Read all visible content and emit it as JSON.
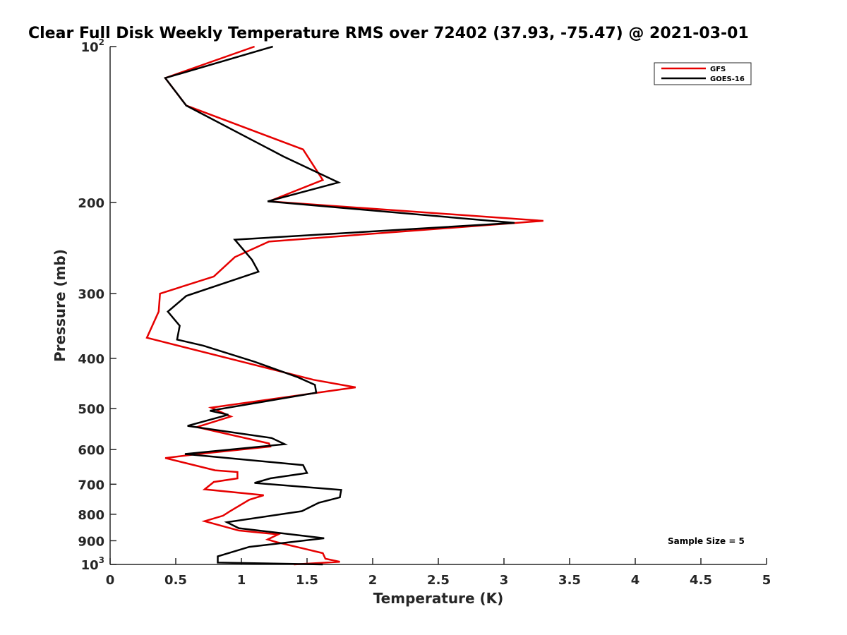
{
  "chart_data": {
    "type": "line",
    "title": "Clear Full Disk Weekly Temperature RMS over 72402 (37.93, -75.47) @ 2021-03-01",
    "xlabel": "Temperature (K)",
    "ylabel": "Pressure (mb)",
    "xlim": [
      0,
      5
    ],
    "ylim": [
      100,
      1000
    ],
    "y_scale": "log",
    "y_reversed": true,
    "grid": false,
    "legend_position": "top-right",
    "x_ticks": [
      0,
      0.5,
      1,
      1.5,
      2,
      2.5,
      3,
      3.5,
      4,
      4.5,
      5
    ],
    "x_tick_labels": [
      "0",
      "0.5",
      "1",
      "1.5",
      "2",
      "2.5",
      "3",
      "3.5",
      "4",
      "4.5",
      "5"
    ],
    "y_ticks": [
      100,
      200,
      300,
      400,
      500,
      600,
      700,
      800,
      900,
      1000
    ],
    "y_tick_labels": [
      {
        "base": "10",
        "sup": "2"
      },
      {
        "base": "200",
        "sup": ""
      },
      {
        "base": "300",
        "sup": ""
      },
      {
        "base": "400",
        "sup": ""
      },
      {
        "base": "500",
        "sup": ""
      },
      {
        "base": "600",
        "sup": ""
      },
      {
        "base": "700",
        "sup": ""
      },
      {
        "base": "800",
        "sup": ""
      },
      {
        "base": "900",
        "sup": ""
      },
      {
        "base": "10",
        "sup": "3"
      }
    ],
    "annotation": "Sample Size = 5",
    "series": [
      {
        "name": "GFS",
        "color": "#e60000",
        "points": [
          [
            1.1,
            100
          ],
          [
            0.42,
            115
          ],
          [
            0.58,
            130
          ],
          [
            1.47,
            158
          ],
          [
            1.62,
            181
          ],
          [
            1.21,
            199
          ],
          [
            3.3,
            217
          ],
          [
            1.21,
            238
          ],
          [
            0.95,
            255
          ],
          [
            0.79,
            278
          ],
          [
            0.38,
            300
          ],
          [
            0.37,
            325
          ],
          [
            0.28,
            365
          ],
          [
            1.55,
            440
          ],
          [
            1.87,
            455
          ],
          [
            0.77,
            498
          ],
          [
            0.92,
            518
          ],
          [
            0.66,
            543
          ],
          [
            1.21,
            584
          ],
          [
            1.22,
            592
          ],
          [
            0.67,
            612
          ],
          [
            0.42,
            623
          ],
          [
            0.8,
            658
          ],
          [
            0.97,
            663
          ],
          [
            0.97,
            682
          ],
          [
            0.79,
            693
          ],
          [
            0.72,
            716
          ],
          [
            1.17,
            735
          ],
          [
            1.06,
            750
          ],
          [
            0.91,
            790
          ],
          [
            0.86,
            805
          ],
          [
            0.72,
            825
          ],
          [
            0.98,
            860
          ],
          [
            1.28,
            875
          ],
          [
            1.2,
            895
          ],
          [
            1.27,
            906
          ],
          [
            1.49,
            934
          ],
          [
            1.62,
            951
          ],
          [
            1.64,
            975
          ],
          [
            1.75,
            988
          ],
          [
            1.4,
            1000
          ]
        ]
      },
      {
        "name": "GOES-16",
        "color": "#000000",
        "points": [
          [
            1.24,
            100
          ],
          [
            0.42,
            115
          ],
          [
            0.58,
            130
          ],
          [
            1.32,
            163
          ],
          [
            1.74,
            183
          ],
          [
            1.2,
            199
          ],
          [
            3.08,
            219
          ],
          [
            0.95,
            236
          ],
          [
            1.08,
            258
          ],
          [
            1.13,
            272
          ],
          [
            0.58,
            303
          ],
          [
            0.44,
            325
          ],
          [
            0.53,
            346
          ],
          [
            0.51,
            368
          ],
          [
            0.71,
            378
          ],
          [
            1.1,
            406
          ],
          [
            1.43,
            435
          ],
          [
            1.56,
            450
          ],
          [
            1.57,
            466
          ],
          [
            0.76,
            505
          ],
          [
            0.9,
            514
          ],
          [
            0.59,
            540
          ],
          [
            1.23,
            570
          ],
          [
            1.33,
            586
          ],
          [
            0.57,
            612
          ],
          [
            1.47,
            643
          ],
          [
            1.5,
            666
          ],
          [
            1.22,
            682
          ],
          [
            1.1,
            696
          ],
          [
            1.76,
            718
          ],
          [
            1.75,
            742
          ],
          [
            1.59,
            760
          ],
          [
            1.46,
            789
          ],
          [
            0.89,
            829
          ],
          [
            0.98,
            851
          ],
          [
            1.63,
            890
          ],
          [
            1.06,
            925
          ],
          [
            0.82,
            965
          ],
          [
            0.82,
            992
          ],
          [
            1.62,
            1000
          ]
        ]
      }
    ]
  }
}
